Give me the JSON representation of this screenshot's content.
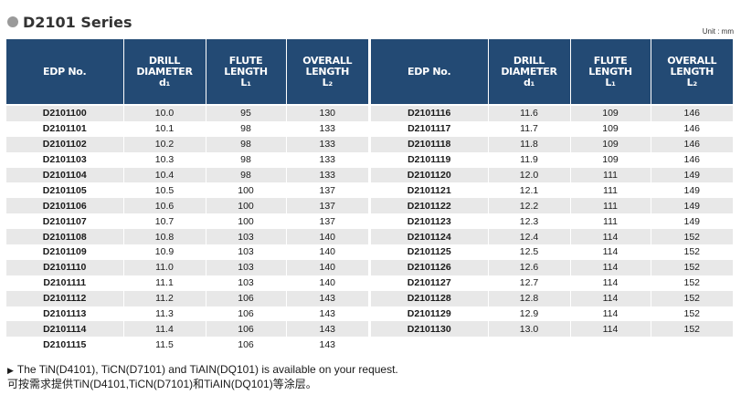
{
  "title": "D2101 Series",
  "unit": "Unit : mm",
  "headers": {
    "edp": "EDP No.",
    "drill_1": "DRILL",
    "drill_2": "DIAMETER",
    "drill_3": "d₁",
    "flute_1": "FLUTE",
    "flute_2": "LENGTH",
    "flute_3": "L₁",
    "overall_1": "OVERALL",
    "overall_2": "LENGTH",
    "overall_3": "L₂"
  },
  "left_rows": [
    {
      "edp": "D2101100",
      "diameter": "10.0",
      "flute": "95",
      "overall": "130"
    },
    {
      "edp": "D2101101",
      "diameter": "10.1",
      "flute": "98",
      "overall": "133"
    },
    {
      "edp": "D2101102",
      "diameter": "10.2",
      "flute": "98",
      "overall": "133"
    },
    {
      "edp": "D2101103",
      "diameter": "10.3",
      "flute": "98",
      "overall": "133"
    },
    {
      "edp": "D2101104",
      "diameter": "10.4",
      "flute": "98",
      "overall": "133"
    },
    {
      "edp": "D2101105",
      "diameter": "10.5",
      "flute": "100",
      "overall": "137"
    },
    {
      "edp": "D2101106",
      "diameter": "10.6",
      "flute": "100",
      "overall": "137"
    },
    {
      "edp": "D2101107",
      "diameter": "10.7",
      "flute": "100",
      "overall": "137"
    },
    {
      "edp": "D2101108",
      "diameter": "10.8",
      "flute": "103",
      "overall": "140"
    },
    {
      "edp": "D2101109",
      "diameter": "10.9",
      "flute": "103",
      "overall": "140"
    },
    {
      "edp": "D2101110",
      "diameter": "11.0",
      "flute": "103",
      "overall": "140"
    },
    {
      "edp": "D2101111",
      "diameter": "11.1",
      "flute": "103",
      "overall": "140"
    },
    {
      "edp": "D2101112",
      "diameter": "11.2",
      "flute": "106",
      "overall": "143"
    },
    {
      "edp": "D2101113",
      "diameter": "11.3",
      "flute": "106",
      "overall": "143"
    },
    {
      "edp": "D2101114",
      "diameter": "11.4",
      "flute": "106",
      "overall": "143"
    },
    {
      "edp": "D2101115",
      "diameter": "11.5",
      "flute": "106",
      "overall": "143"
    }
  ],
  "right_rows": [
    {
      "edp": "D2101116",
      "diameter": "11.6",
      "flute": "109",
      "overall": "146"
    },
    {
      "edp": "D2101117",
      "diameter": "11.7",
      "flute": "109",
      "overall": "146"
    },
    {
      "edp": "D2101118",
      "diameter": "11.8",
      "flute": "109",
      "overall": "146"
    },
    {
      "edp": "D2101119",
      "diameter": "11.9",
      "flute": "109",
      "overall": "146"
    },
    {
      "edp": "D2101120",
      "diameter": "12.0",
      "flute": "111",
      "overall": "149"
    },
    {
      "edp": "D2101121",
      "diameter": "12.1",
      "flute": "111",
      "overall": "149"
    },
    {
      "edp": "D2101122",
      "diameter": "12.2",
      "flute": "111",
      "overall": "149"
    },
    {
      "edp": "D2101123",
      "diameter": "12.3",
      "flute": "111",
      "overall": "149"
    },
    {
      "edp": "D2101124",
      "diameter": "12.4",
      "flute": "114",
      "overall": "152"
    },
    {
      "edp": "D2101125",
      "diameter": "12.5",
      "flute": "114",
      "overall": "152"
    },
    {
      "edp": "D2101126",
      "diameter": "12.6",
      "flute": "114",
      "overall": "152"
    },
    {
      "edp": "D2101127",
      "diameter": "12.7",
      "flute": "114",
      "overall": "152"
    },
    {
      "edp": "D2101128",
      "diameter": "12.8",
      "flute": "114",
      "overall": "152"
    },
    {
      "edp": "D2101129",
      "diameter": "12.9",
      "flute": "114",
      "overall": "152"
    },
    {
      "edp": "D2101130",
      "diameter": "13.0",
      "flute": "114",
      "overall": "152"
    }
  ],
  "footer": {
    "arrow": "▶",
    "line1": "The TiN(D4101), TiCN(D7101) and TiAIN(DQ101) is available on your request.",
    "line2": "可按需求提供TiN(D4101,TiCN(D7101)和TiAIN(DQ101)等涂层。"
  },
  "colors": {
    "header_bg": "#234a74",
    "stripe_bg": "#e8e8e8",
    "title_dot": "#9a9a9a"
  }
}
